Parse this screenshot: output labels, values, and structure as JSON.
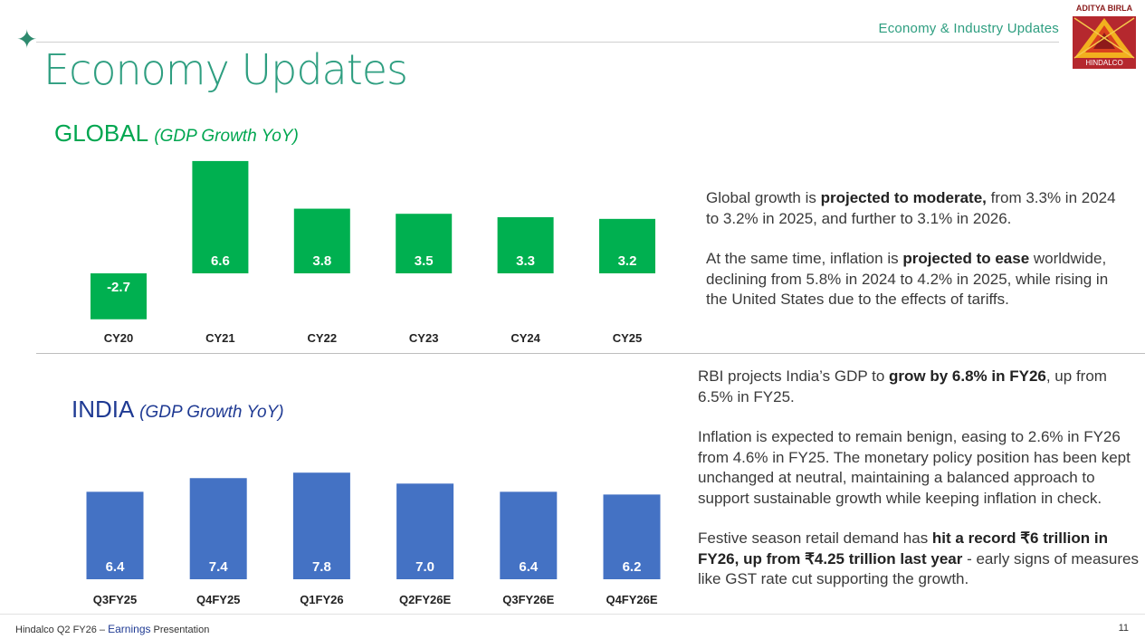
{
  "header": {
    "section_tag": "Economy & Industry Updates",
    "title": "Economy Updates",
    "logo": {
      "top_text": "ADITYA BIRLA",
      "bottom_text": "HINDALCO"
    }
  },
  "colors": {
    "global_bar": "#00b050",
    "india_bar": "#4472c4",
    "accent": "#2e9e80"
  },
  "global": {
    "heading": "GLOBAL",
    "heading_sub": "(GDP Growth YoY)",
    "paragraphs": [
      [
        {
          "t": "Global growth is "
        },
        {
          "t": "projected to moderate,",
          "b": true
        },
        {
          "t": " from 3.3% in 2024 to 3.2% in 2025, and further to 3.1% in 2026."
        }
      ],
      [
        {
          "t": "At the same time, inflation is "
        },
        {
          "t": "projected to ease",
          "b": true
        },
        {
          "t": " worldwide, declining from 5.8% in 2024 to 4.2% in 2025, while rising in the United States due to the effects of tariffs."
        }
      ]
    ]
  },
  "india": {
    "heading": "INDIA",
    "heading_sub": "(GDP Growth YoY)",
    "paragraphs": [
      [
        {
          "t": "RBI projects India’s GDP to "
        },
        {
          "t": "grow by 6.8% in FY26",
          "b": true
        },
        {
          "t": ", up from 6.5% in FY25."
        }
      ],
      [
        {
          "t": "Inflation is expected to remain benign, easing to 2.6% in FY26 from 4.6% in FY25. The monetary policy position has been kept unchanged at neutral, maintaining a balanced approach to support sustainable growth while keeping inflation in check."
        }
      ],
      [
        {
          "t": "Festive season retail demand has "
        },
        {
          "t": "hit a record ₹6 trillion in FY26, up from ₹4.25 trillion last year",
          "b": true
        },
        {
          "t": " - early signs of measures like GST rate cut supporting the growth."
        }
      ]
    ]
  },
  "chart_data": [
    {
      "type": "bar",
      "categories": [
        "CY20",
        "CY21",
        "CY22",
        "CY23",
        "CY24",
        "CY25"
      ],
      "values": [
        -2.7,
        6.6,
        3.8,
        3.5,
        3.3,
        3.2
      ],
      "data_labels": [
        "-2.7",
        "6.6",
        "3.8",
        "3.5",
        "3.3",
        "3.2"
      ],
      "title": "",
      "xlabel": "",
      "ylabel": "",
      "grid": false
    },
    {
      "type": "bar",
      "categories": [
        "Q3FY25",
        "Q4FY25",
        "Q1FY26",
        "Q2FY26E",
        "Q3FY26E",
        "Q4FY26E"
      ],
      "values": [
        6.4,
        7.4,
        7.8,
        7.0,
        6.4,
        6.2
      ],
      "data_labels": [
        "6.4",
        "7.4",
        "7.8",
        "7.0",
        "6.4",
        "6.2"
      ],
      "title": "",
      "xlabel": "",
      "ylabel": "",
      "grid": false
    }
  ],
  "footer": {
    "left_prefix": "Hindalco Q2 FY26 – ",
    "left_accent": "Earnings",
    "left_suffix": " Presentation",
    "page_number": "11"
  }
}
